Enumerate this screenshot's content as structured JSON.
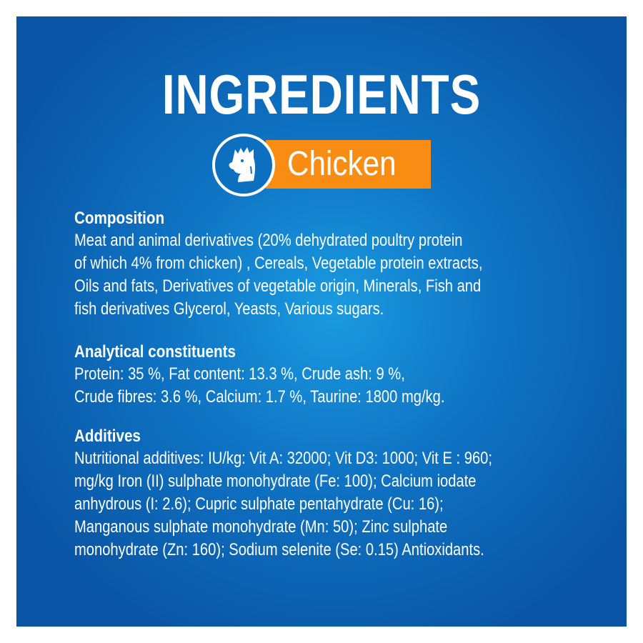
{
  "title": "INGREDIENTS",
  "badge": {
    "label": "Chicken",
    "icon": "rooster-head-icon",
    "color": "#f98d14"
  },
  "colors": {
    "background": "#0f74c4",
    "accent": "#f98d14"
  },
  "sections": [
    {
      "heading": "Composition",
      "lines": [
        "Meat and animal derivatives (20% dehydrated poultry protein",
        "of which 4% from chicken) , Cereals, Vegetable protein extracts,",
        "Oils and fats, Derivatives of vegetable origin, Minerals, Fish and",
        "fish derivatives Glycerol, Yeasts, Various sugars."
      ]
    },
    {
      "heading": "Analytical constituents",
      "lines": [
        "Protein: 35 %, Fat content: 13.3 %, Crude ash: 9 %,",
        "Crude fibres: 3.6 %, Calcium: 1.7 %, Taurine: 1800 mg/kg."
      ]
    },
    {
      "heading": "Additives",
      "lines": [
        "Nutritional additives: IU/kg: Vit A: 32000; Vit D3: 1000; Vit E : 960;",
        "mg/kg Iron (II) sulphate monohydrate (Fe: 100); Calcium iodate",
        "anhydrous (I: 2.6); Cupric sulphate pentahydrate (Cu: 16);",
        "Manganous sulphate monohydrate (Mn: 50); Zinc sulphate",
        "monohydrate (Zn: 160); Sodium selenite (Se: 0.15) Antioxidants."
      ]
    }
  ]
}
